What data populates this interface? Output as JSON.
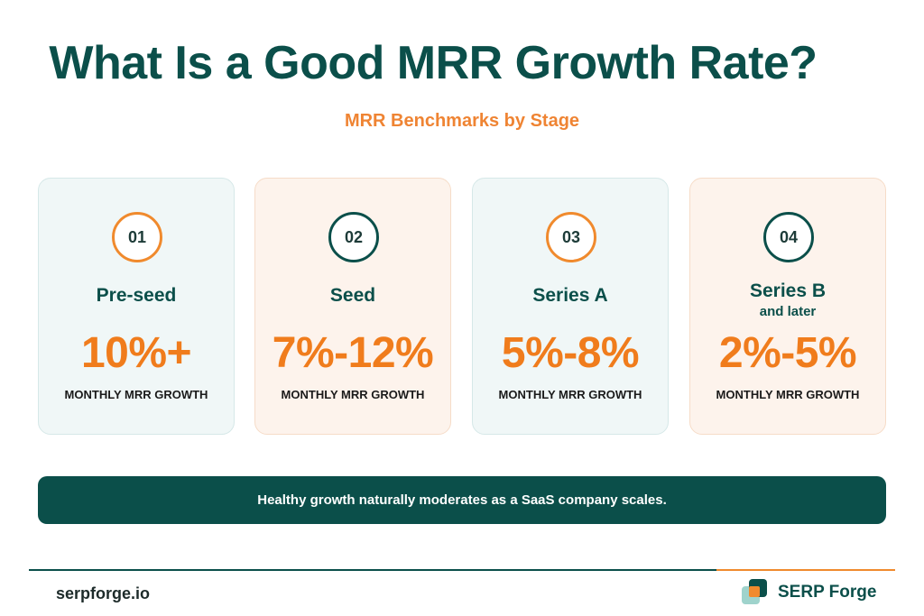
{
  "header": {
    "title": "What Is a Good MRR Growth Rate?",
    "subtitle": "MRR Benchmarks by Stage"
  },
  "cards": [
    {
      "number": "01",
      "stage": "Pre-seed",
      "stage_sub": "",
      "rate": "10%+",
      "metric": "MONTHLY MRR GROWTH",
      "theme": "teal",
      "badge_color": "#f08a2d"
    },
    {
      "number": "02",
      "stage": "Seed",
      "stage_sub": "",
      "rate": "7%-12%",
      "metric": "MONTHLY MRR GROWTH",
      "theme": "peach",
      "badge_color": "#0b4f4a"
    },
    {
      "number": "03",
      "stage": "Series A",
      "stage_sub": "",
      "rate": "5%-8%",
      "metric": "MONTHLY MRR GROWTH",
      "theme": "teal",
      "badge_color": "#f08a2d"
    },
    {
      "number": "04",
      "stage": "Series B",
      "stage_sub": "and later",
      "rate": "2%-5%",
      "metric": "MONTHLY MRR GROWTH",
      "theme": "peach",
      "badge_color": "#0b4f4a"
    }
  ],
  "banner": {
    "text": "Healthy growth naturally moderates as a SaaS company scales."
  },
  "footer": {
    "site": "serpforge.io",
    "brand": "SERP Forge",
    "logo_icon": "serp-forge-logo-icon"
  },
  "colors": {
    "primary": "#0b4f4a",
    "accent": "#f08a2d"
  }
}
